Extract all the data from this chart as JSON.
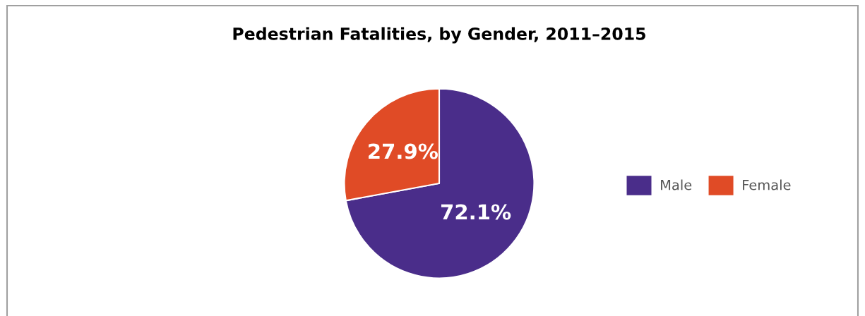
{
  "chart_data": {
    "type": "pie",
    "title": "Pedestrian Fatalities, by Gender, 2011–2015",
    "categories": [
      "Male",
      "Female"
    ],
    "values": [
      72.1,
      27.9
    ],
    "colors": [
      "#4a2d8a",
      "#e04b26"
    ],
    "value_labels": [
      "72.1%",
      "27.9%"
    ],
    "legend": "right"
  }
}
